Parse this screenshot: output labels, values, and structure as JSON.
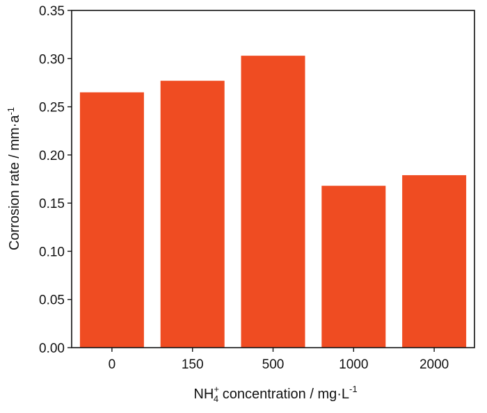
{
  "chart_data": {
    "type": "bar",
    "categories": [
      "0",
      "150",
      "500",
      "1000",
      "2000"
    ],
    "values": [
      0.265,
      0.277,
      0.303,
      0.168,
      0.179
    ],
    "ylim": [
      0,
      0.35
    ],
    "yticks": [
      "0.00",
      "0.05",
      "0.10",
      "0.15",
      "0.20",
      "0.25",
      "0.30",
      "0.35"
    ],
    "xlabel": "NH4+ concentration / mg·L-1",
    "ylabel": "Corrosion rate / mm·a-1",
    "bar_color": "#ef4c22",
    "grid": false
  },
  "labels": {
    "x_title_prefix": "NH",
    "x_title_sub": "4",
    "x_title_sup": "+",
    "x_title_rest": " concentration / mg·L",
    "x_title_sup2": "-1",
    "y_title_main": "Corrosion rate / mm·a",
    "y_title_sup": "-1"
  }
}
